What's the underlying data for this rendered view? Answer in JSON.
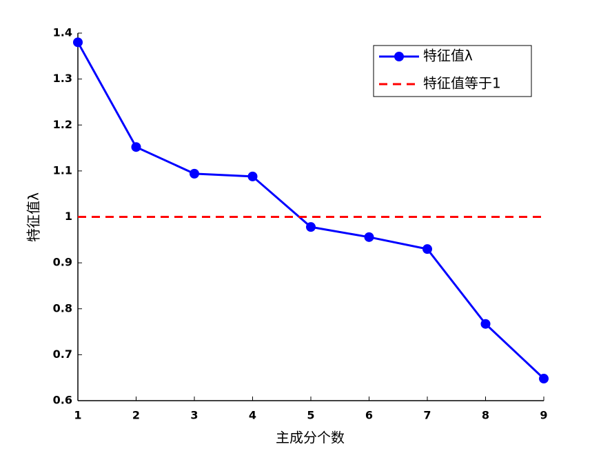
{
  "chart_data": {
    "type": "line",
    "xlabel": "主成分个数",
    "ylabel": "特征值λ",
    "x": [
      1,
      2,
      3,
      4,
      5,
      6,
      7,
      8,
      9
    ],
    "series": [
      {
        "name": "特征值λ",
        "color": "#0000ff",
        "marker": "circle",
        "linestyle": "solid",
        "values": [
          1.38,
          1.152,
          1.094,
          1.088,
          0.978,
          0.956,
          0.93,
          0.767,
          0.648
        ]
      },
      {
        "name": "特征值等于1",
        "color": "#ff0000",
        "linestyle": "dashed",
        "x": [
          1,
          9
        ],
        "values": [
          1,
          1
        ]
      }
    ],
    "xlim": [
      1,
      9
    ],
    "xticks": [
      1,
      2,
      3,
      4,
      5,
      6,
      7,
      8,
      9
    ],
    "ylim": [
      0.6,
      1.4
    ],
    "yticks": [
      0.6,
      0.7,
      0.8,
      0.9,
      1,
      1.1,
      1.2,
      1.3,
      1.4
    ],
    "grid": false,
    "legend": "upper right"
  }
}
